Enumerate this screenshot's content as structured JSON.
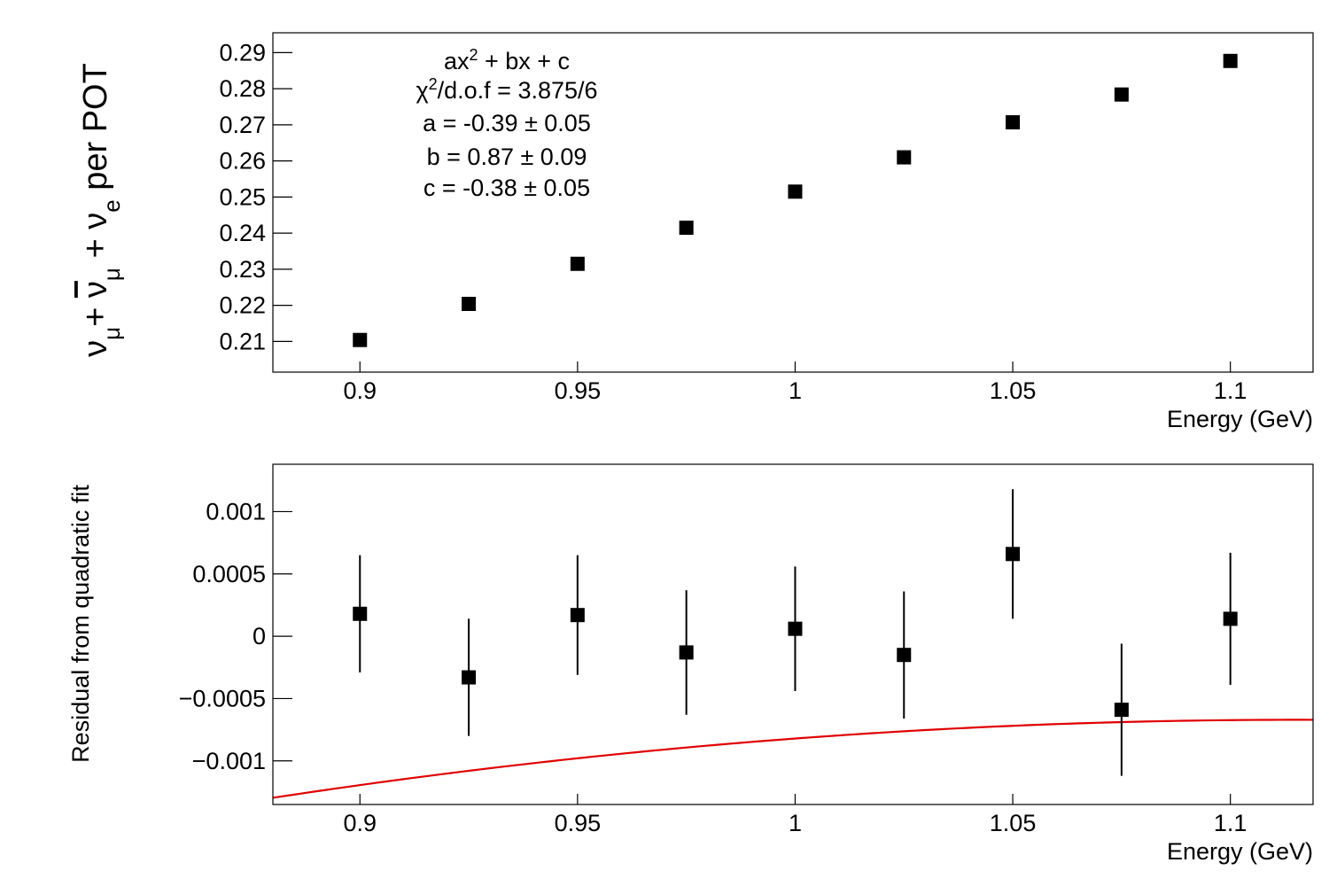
{
  "chart_data": [
    {
      "type": "scatter",
      "xlabel": "Energy (GeV)",
      "ylabel": "ν_μ+ ν̄_μ + ν_e per POT",
      "xlim": [
        0.88,
        1.119
      ],
      "ylim": [
        0.2015,
        0.2955
      ],
      "xticks": [
        0.9,
        0.95,
        1.0,
        1.05,
        1.1
      ],
      "xtick_labels": [
        "0.9",
        "0.95",
        "1",
        "1.05",
        "1.1"
      ],
      "yticks": [
        0.21,
        0.22,
        0.23,
        0.24,
        0.25,
        0.26,
        0.27,
        0.28,
        0.29
      ],
      "ytick_labels": [
        "0.21",
        "0.22",
        "0.23",
        "0.24",
        "0.25",
        "0.26",
        "0.27",
        "0.28",
        "0.29"
      ],
      "series": [
        {
          "x": [
            0.9,
            0.925,
            0.95,
            0.975,
            1.0,
            1.025,
            1.05,
            1.075,
            1.1
          ],
          "y": [
            0.2104,
            0.2204,
            0.2315,
            0.2415,
            0.2515,
            0.261,
            0.2707,
            0.2784,
            0.2877
          ],
          "marker": "square",
          "color": "#000000"
        }
      ],
      "fit": {
        "formula": "ax² + bx + c",
        "a": -0.39,
        "b": 0.87,
        "c": -0.38,
        "x_range": [
          0.88,
          1.119
        ],
        "color": "#e00000"
      },
      "annotations": {
        "formula_label": "ax² + bx + c",
        "chi2_label": "χ²/d.o.f = 3.875/6",
        "a_label": "a = -0.39 ± 0.05",
        "b_label": "b = 0.87 ± 0.09",
        "c_label": "c = -0.38 ± 0.05"
      }
    },
    {
      "type": "scatter",
      "xlabel": "Energy (GeV)",
      "ylabel": "Residual from quadratic fit",
      "xlim": [
        0.88,
        1.119
      ],
      "ylim": [
        -0.00135,
        0.00138
      ],
      "xticks": [
        0.9,
        0.95,
        1.0,
        1.05,
        1.1
      ],
      "xtick_labels": [
        "0.9",
        "0.95",
        "1",
        "1.05",
        "1.1"
      ],
      "yticks": [
        -0.001,
        -0.0005,
        0,
        0.0005,
        0.001
      ],
      "ytick_labels": [
        "−0.001",
        "−0.0005",
        "0",
        "0.0005",
        "0.001"
      ],
      "series": [
        {
          "x": [
            0.9,
            0.925,
            0.95,
            0.975,
            1.0,
            1.025,
            1.05,
            1.075,
            1.1
          ],
          "y": [
            0.00018,
            -0.00033,
            0.00017,
            -0.00013,
            6e-05,
            -0.00015,
            0.00066,
            -0.00059,
            0.00014
          ],
          "yerr": [
            0.00047,
            0.00047,
            0.00048,
            0.0005,
            0.0005,
            0.00051,
            0.00052,
            0.00053,
            0.00053
          ],
          "marker": "square",
          "color": "#000000"
        }
      ]
    }
  ]
}
